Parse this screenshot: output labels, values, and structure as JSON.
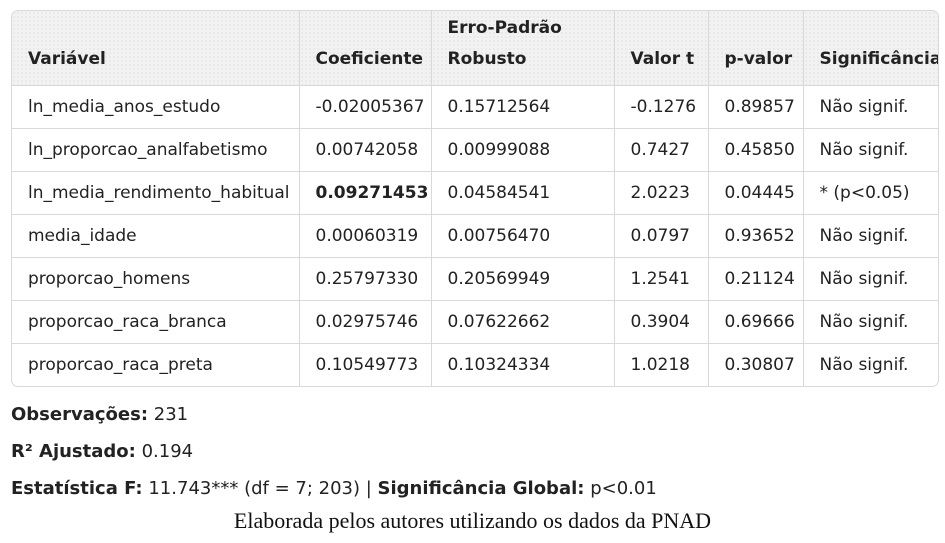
{
  "table": {
    "headers": [
      [
        "Variável"
      ],
      [
        "Coeficiente"
      ],
      [
        "Erro-Padrão",
        "Robusto"
      ],
      [
        "Valor t"
      ],
      [
        "p-valor"
      ],
      [
        "Significância"
      ]
    ],
    "rows": [
      [
        "ln_media_anos_estudo",
        "-0.02005367",
        "0.15712564",
        "-0.1276",
        "0.89857",
        "Não signif."
      ],
      [
        "ln_proporcao_analfabetismo",
        "0.00742058",
        "0.00999088",
        "0.7427",
        "0.45850",
        "Não signif."
      ],
      [
        "ln_media_rendimento_habitual",
        "0.09271453",
        "0.04584541",
        "2.0223",
        "0.04445",
        "* (p<0.05)"
      ],
      [
        "media_idade",
        "0.00060319",
        "0.00756470",
        "0.0797",
        "0.93652",
        "Não signif."
      ],
      [
        "proporcao_homens",
        "0.25797330",
        "0.20569949",
        "1.2541",
        "0.21124",
        "Não signif."
      ],
      [
        "proporcao_raca_branca",
        "0.02975746",
        "0.07622662",
        "0.3904",
        "0.69666",
        "Não signif."
      ],
      [
        "proporcao_raca_preta",
        "0.10549773",
        "0.10324334",
        "1.0218",
        "0.30807",
        "Não signif."
      ]
    ]
  },
  "stats": {
    "obs_label": "Observações:",
    "obs_value": "231",
    "r2_label": "R² Ajustado:",
    "r2_value": "0.194",
    "f_label": "Estatística F:",
    "f_value": "11.743*** (df = 7; 203) |",
    "global_label": "Significância Global:",
    "global_value": "p<0.01"
  },
  "caption": "Elaborada pelos autores utilizando os dados da PNAD"
}
